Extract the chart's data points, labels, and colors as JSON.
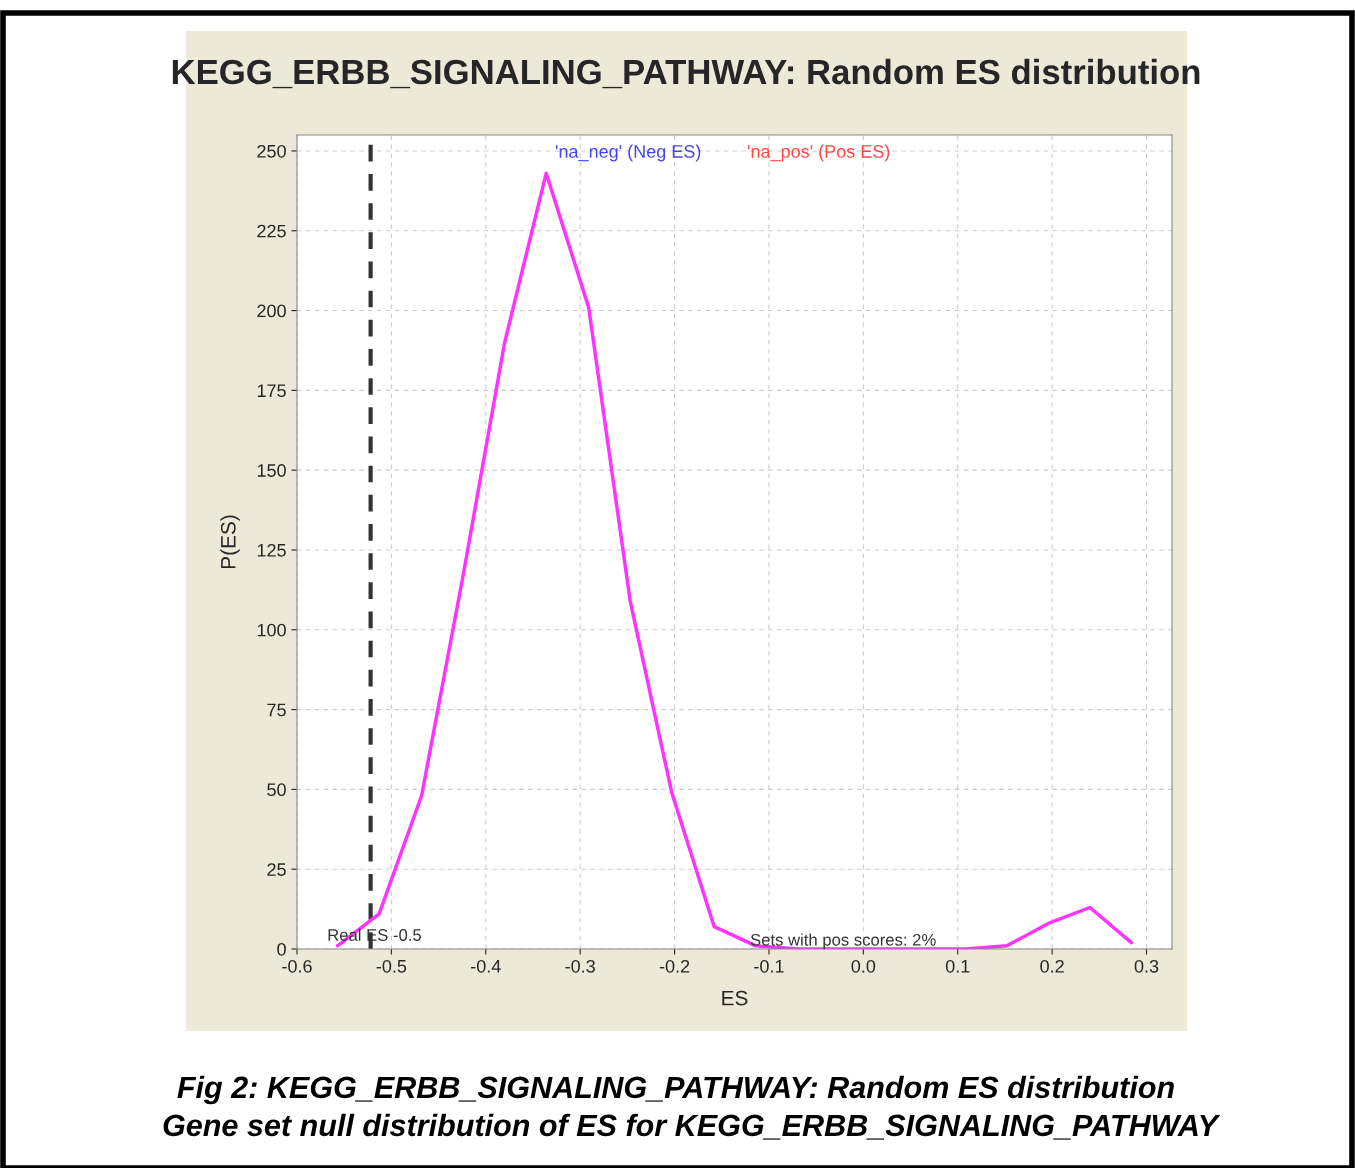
{
  "chart_data": {
    "type": "line",
    "title": "KEGG_ERBB_SIGNALING_PATHWAY: Random ES distribution",
    "xlabel": "ES",
    "ylabel": "P(ES)",
    "x": [
      -0.557,
      -0.513,
      -0.468,
      -0.424,
      -0.38,
      -0.336,
      -0.291,
      -0.247,
      -0.203,
      -0.158,
      -0.114,
      -0.07,
      -0.025,
      0.019,
      0.063,
      0.108,
      0.152,
      0.196,
      0.24,
      0.284
    ],
    "series": [
      {
        "color": "#ff33ff",
        "values": [
          1,
          11,
          48,
          117,
          190,
          243,
          201,
          109,
          49,
          7,
          1,
          0,
          0,
          0,
          0,
          0,
          1,
          8,
          13,
          2
        ]
      }
    ],
    "xlim": [
      -0.6,
      0.327
    ],
    "ylim": [
      0,
      255
    ],
    "xticks": [
      {
        "value": -0.6,
        "label": "-0.6"
      },
      {
        "value": -0.5,
        "label": "-0.5"
      },
      {
        "value": -0.4,
        "label": "-0.4"
      },
      {
        "value": -0.3,
        "label": "-0.3"
      },
      {
        "value": -0.2,
        "label": "-0.2"
      },
      {
        "value": -0.1,
        "label": "-0.1"
      },
      {
        "value": 0,
        "label": "0.0"
      },
      {
        "value": 0.1,
        "label": "0.1"
      },
      {
        "value": 0.2,
        "label": "0.2"
      },
      {
        "value": 0.3,
        "label": "0.3"
      }
    ],
    "yticks": [
      0,
      25,
      50,
      75,
      100,
      125,
      150,
      175,
      200,
      225,
      250
    ],
    "ref_lines": [
      {
        "axis": "x",
        "value": -0.522,
        "label": "Real ES -0.5",
        "color": "#333333",
        "line_style": "dashed"
      }
    ],
    "annotations": [
      "'na_neg' (Neg ES)",
      "'na_pos' (Pos ES)",
      {
        "text": "Sets with pos scores: 2%",
        "x": -0.12,
        "y": 0
      },
      "Fig 2: KEGG_ERBB_SIGNALING_PATHWAY: Random ES distribution",
      "Gene set null distribution of ES for KEGG_ERBB_SIGNALING_PATHWAY"
    ],
    "grid": true,
    "legend": false,
    "marker": "none",
    "line_style": "solid"
  }
}
